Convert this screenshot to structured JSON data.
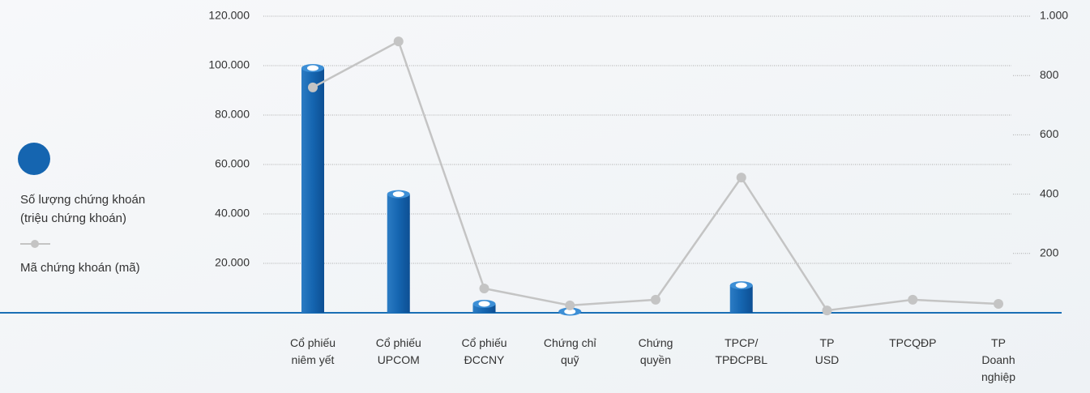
{
  "chart_data": {
    "type": "bar_line",
    "categories": [
      [
        "Cổ phiếu",
        "niêm yết"
      ],
      [
        "Cổ phiếu",
        "UPCOM"
      ],
      [
        "Cổ phiếu",
        "ĐCCNY"
      ],
      [
        "Chứng chỉ",
        "quỹ"
      ],
      [
        "Chứng",
        "quyền"
      ],
      [
        "TPCP/",
        "TPĐCPBL"
      ],
      [
        "TP",
        "USD"
      ],
      [
        "TPCQĐP"
      ],
      [
        "TP",
        "Doanh",
        "nghiệp"
      ]
    ],
    "series": [
      {
        "name": "Số lượng chứng khoán (triệu chứng khoán)",
        "color": "#1565b0",
        "values": [
          99000,
          48000,
          3600,
          500,
          0,
          11100,
          0,
          0,
          0
        ]
      },
      {
        "name": "Mã chứng khoán (mã)",
        "color": "#c4c4c4",
        "axis": "y2",
        "values": [
          760,
          915,
          82,
          25,
          44,
          456,
          8,
          44,
          30
        ]
      }
    ],
    "ylim": [
      0,
      120000
    ],
    "yticks": [
      {
        "value": 20000,
        "label": "20.000"
      },
      {
        "value": 40000,
        "label": "40.000"
      },
      {
        "value": 60000,
        "label": "60.000"
      },
      {
        "value": 80000,
        "label": "80.000"
      },
      {
        "value": 100000,
        "label": "100.000"
      },
      {
        "value": 120000,
        "label": "120.000"
      }
    ],
    "y2lim": [
      0,
      1000
    ],
    "y2ticks": [
      200,
      400,
      600,
      800,
      {
        "value": 1000,
        "label": "1.000"
      }
    ],
    "grid": true
  }
}
